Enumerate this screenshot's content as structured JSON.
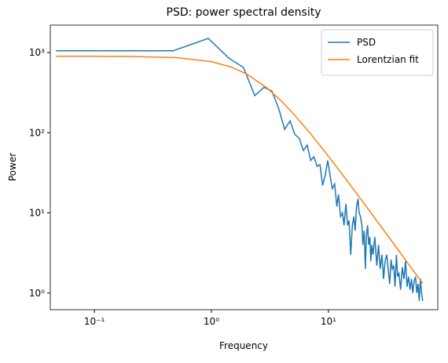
{
  "chart_data": {
    "type": "line",
    "title": "PSD: power spectral density",
    "xlabel": "Frequency",
    "ylabel": "Power",
    "xscale": "log",
    "yscale": "log",
    "xlim": [
      0.042,
      86
    ],
    "ylim": [
      0.62,
      2200
    ],
    "xticks": [
      {
        "value": 0.1,
        "label": "10⁻¹"
      },
      {
        "value": 1,
        "label": "10⁰"
      },
      {
        "value": 10,
        "label": "10¹"
      }
    ],
    "yticks": [
      {
        "value": 1,
        "label": "10⁰"
      },
      {
        "value": 10,
        "label": "10¹"
      },
      {
        "value": 100,
        "label": "10²"
      },
      {
        "value": 1000,
        "label": "10³"
      }
    ],
    "legend": "upper right",
    "series": [
      {
        "name": "PSD",
        "color": "#1f77b4",
        "x": [
          0.047,
          0.47,
          0.94,
          1.41,
          1.88,
          2.35,
          2.82,
          3.29,
          3.76,
          4.23,
          4.7,
          5.17,
          5.64,
          6.11,
          6.58,
          7.05,
          7.52,
          7.99,
          8.46,
          8.93,
          9.4,
          9.87,
          10.3,
          10.8,
          11.3,
          11.8,
          12.2,
          12.7,
          13.2,
          13.6,
          14.1,
          14.6,
          15.0,
          15.5,
          16.0,
          16.5,
          16.9,
          17.4,
          17.9,
          18.3,
          18.8,
          19.3,
          19.7,
          20.2,
          20.7,
          21.1,
          21.6,
          22.1,
          22.6,
          23.0,
          23.5,
          24.0,
          24.9,
          25.9,
          26.8,
          27.7,
          28.7,
          29.6,
          30.5,
          31.5,
          32.4,
          33.4,
          34.3,
          35.2,
          36.2,
          37.1,
          38.1,
          39.0,
          40.0,
          41.4,
          42.8,
          44.2,
          45.6,
          47.0,
          48.4,
          49.8,
          51.2,
          52.6,
          54.0,
          55.5,
          56.9,
          58.3,
          59.7,
          61.1,
          62.5,
          63.9
        ],
        "values": [
          1050,
          1050,
          1500,
          850,
          650,
          290,
          370,
          330,
          200,
          110,
          140,
          95,
          85,
          60,
          70,
          45,
          50,
          38,
          40,
          22,
          30,
          45,
          30,
          20,
          23,
          12,
          17,
          9,
          10,
          7,
          13,
          7,
          8,
          3,
          7,
          9,
          6,
          12,
          15,
          10,
          9,
          7,
          4,
          6,
          2,
          5,
          7,
          4,
          5,
          2.5,
          4,
          3,
          5,
          2.2,
          4,
          2,
          3,
          1.5,
          2.5,
          3,
          2,
          1.3,
          2.6,
          2,
          2.2,
          1.2,
          3,
          1.6,
          1.8,
          1.1,
          2.1,
          1.5,
          2.5,
          1.2,
          1.6,
          1.1,
          1.5,
          1.0,
          1.4,
          1.6,
          1.0,
          1.3,
          0.8,
          1.5,
          1.0,
          0.8
        ]
      },
      {
        "name": "Lorentzian fit",
        "color": "#ff7f0e",
        "x": [
          0.047,
          0.1,
          0.2,
          0.5,
          1,
          1.5,
          2,
          3,
          4,
          5,
          7,
          10,
          15,
          20,
          30,
          40,
          50,
          64
        ],
        "values": [
          900,
          898,
          894,
          864,
          771,
          655,
          540,
          360,
          245,
          174,
          98,
          51,
          23.4,
          13.3,
          5.96,
          3.36,
          2.15,
          1.32
        ]
      }
    ]
  }
}
